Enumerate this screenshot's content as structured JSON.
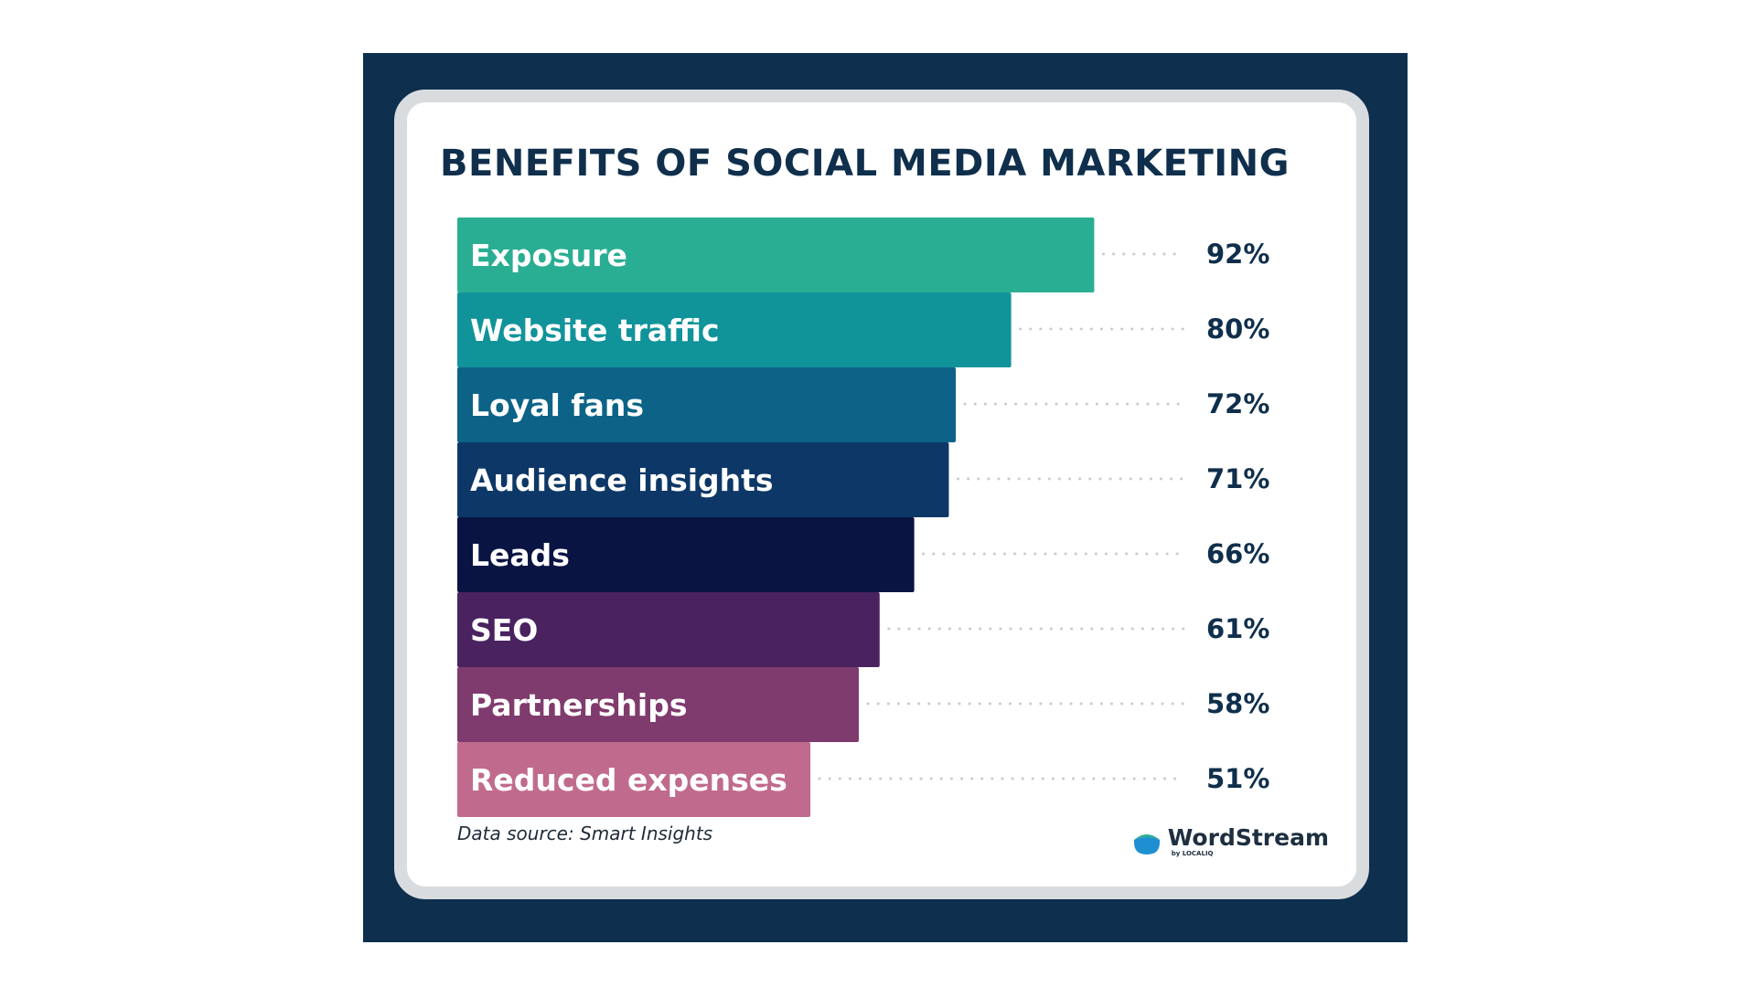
{
  "chart_data": {
    "type": "bar",
    "orientation": "horizontal",
    "title": "BENEFITS OF SOCIAL MEDIA MARKETING",
    "categories": [
      "Exposure",
      "Website traffic",
      "Loyal fans",
      "Audience insights",
      "Leads",
      "SEO",
      "Partnerships",
      "Reduced expenses"
    ],
    "values": [
      92,
      80,
      72,
      71,
      66,
      61,
      58,
      51
    ],
    "value_labels": [
      "92%",
      "80%",
      "72%",
      "71%",
      "66%",
      "61%",
      "58%",
      "51%"
    ],
    "bar_colors": [
      "#2aae93",
      "#11939a",
      "#0c6387",
      "#0d3766",
      "#0a1442",
      "#4a2260",
      "#7f3b6e",
      "#c06b8d"
    ],
    "xlim": [
      0,
      100
    ],
    "legend": "none",
    "grid": false,
    "leader_lines": "dotted",
    "source": "Data source: Smart Insights"
  },
  "brand": {
    "name": "WordStream",
    "sub": "by LOCALIQ",
    "icon": "wordstream-logo-icon"
  },
  "colors": {
    "frame": "#0e2f4e",
    "card_border": "#d9dcdf",
    "title": "#0f2f4c",
    "leader_dots": "#c9ccd0"
  }
}
